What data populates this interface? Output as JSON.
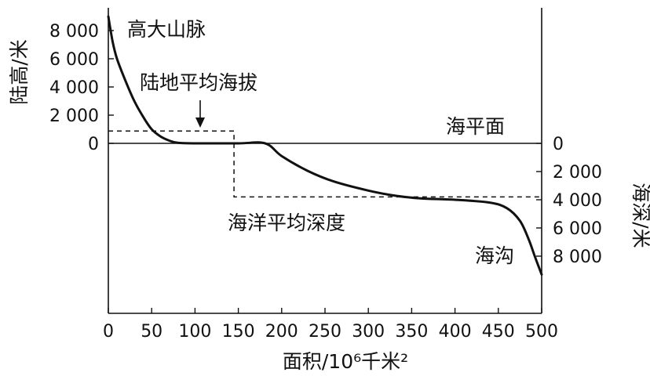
{
  "chart_data": {
    "type": "line",
    "xlabel": "面积/10⁶千米²",
    "ylabel_left": "陆高/米",
    "ylabel_right": "海深/米",
    "x_ticks": [
      "0",
      "50",
      "100",
      "150",
      "200",
      "250",
      "300",
      "350",
      "400",
      "450",
      "500"
    ],
    "y_left_ticks": [
      {
        "value": 8000,
        "label": "8 000"
      },
      {
        "value": 6000,
        "label": "6 000"
      },
      {
        "value": 4000,
        "label": "4 000"
      },
      {
        "value": 2000,
        "label": "2 000"
      },
      {
        "value": 0,
        "label": "0"
      }
    ],
    "y_right_ticks": [
      {
        "value": 0,
        "label": "0"
      },
      {
        "value": -2000,
        "label": "2 000"
      },
      {
        "value": -4000,
        "label": "4 000"
      },
      {
        "value": -6000,
        "label": "6 000"
      },
      {
        "value": -8000,
        "label": "8 000"
      }
    ],
    "xlim": [
      0,
      500
    ],
    "ylim": [
      -11000,
      9000
    ],
    "series": [
      {
        "points": [
          [
            0,
            9000
          ],
          [
            5,
            7200
          ],
          [
            10,
            6000
          ],
          [
            20,
            4400
          ],
          [
            30,
            3000
          ],
          [
            40,
            1900
          ],
          [
            50,
            1000
          ],
          [
            60,
            500
          ],
          [
            70,
            200
          ],
          [
            80,
            40
          ],
          [
            100,
            0
          ],
          [
            150,
            0
          ],
          [
            181,
            0
          ],
          [
            200,
            -900
          ],
          [
            230,
            -1950
          ],
          [
            260,
            -2700
          ],
          [
            300,
            -3350
          ],
          [
            330,
            -3700
          ],
          [
            360,
            -3900
          ],
          [
            400,
            -4000
          ],
          [
            440,
            -4200
          ],
          [
            460,
            -4600
          ],
          [
            475,
            -5500
          ],
          [
            485,
            -6800
          ],
          [
            492,
            -8000
          ],
          [
            500,
            -9300
          ]
        ]
      }
    ],
    "reference_lines": [
      {
        "name": "陆地平均海拔",
        "value": 875,
        "x_range": [
          0,
          145
        ]
      },
      {
        "name": "海洋平均深度",
        "value": -3800,
        "x_range": [
          145,
          500
        ]
      }
    ],
    "sea_level_label": "海平面",
    "annotations": [
      {
        "text": "高大山脉"
      },
      {
        "text": "陆地平均海拔"
      },
      {
        "text": "海洋平均深度"
      },
      {
        "text": "海平面"
      },
      {
        "text": "海沟"
      }
    ]
  }
}
